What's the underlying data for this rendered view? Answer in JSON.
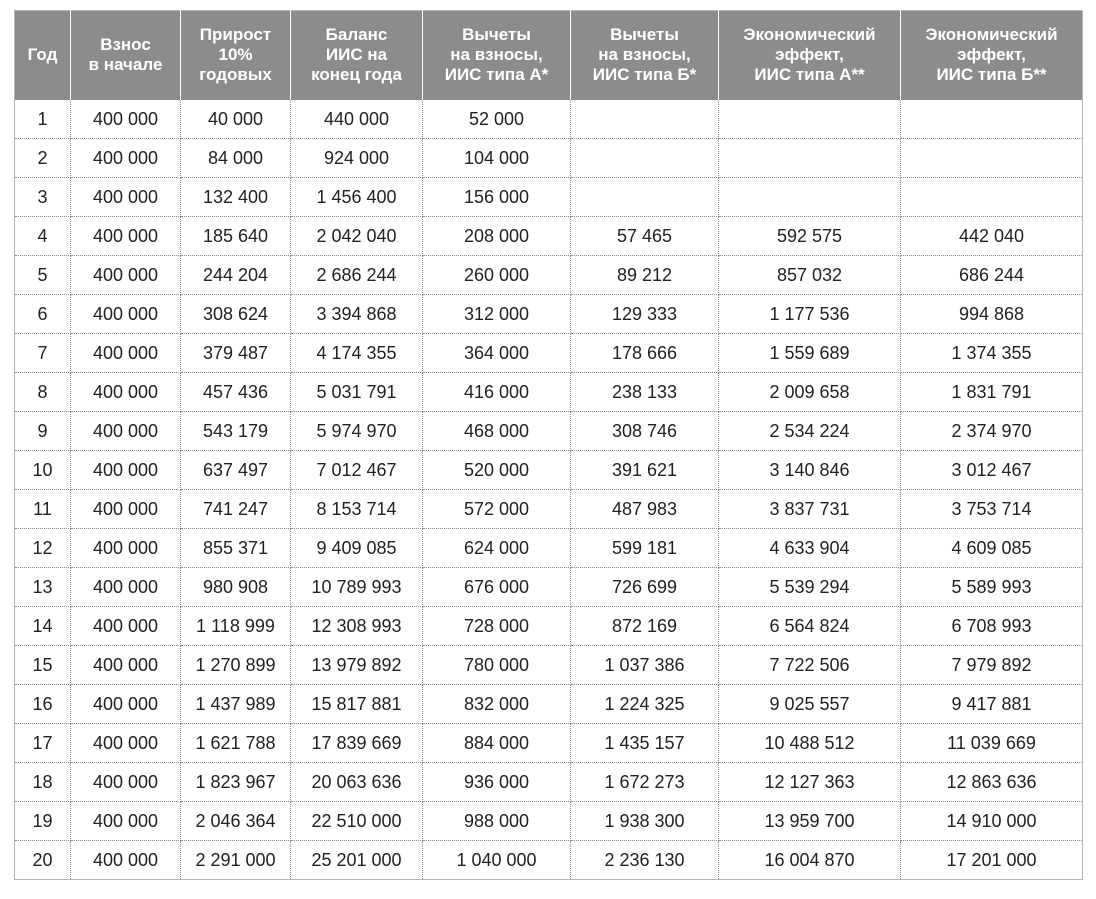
{
  "table": {
    "header": [
      "Год",
      "Взнос\nв начале",
      "Прирост\n10%\nгодовых",
      "Баланс\nИИС на\nконец года",
      "Вычеты\nна взносы,\nИИС типа А*",
      "Вычеты\nна взносы,\nИИС типа Б*",
      "Экономический\nэффект,\nИИС типа А**",
      "Экономический\nэффект,\nИИС типа Б**"
    ],
    "rows": [
      [
        "1",
        "400 000",
        "40 000",
        "440 000",
        "52 000",
        null,
        null,
        null
      ],
      [
        "2",
        "400 000",
        "84 000",
        "924 000",
        "104 000",
        null,
        null,
        null
      ],
      [
        "3",
        "400 000",
        "132 400",
        "1 456 400",
        "156 000",
        null,
        null,
        null
      ],
      [
        "4",
        "400 000",
        "185 640",
        "2 042 040",
        "208 000",
        "57 465",
        "592 575",
        "442 040"
      ],
      [
        "5",
        "400 000",
        "244 204",
        "2 686 244",
        "260 000",
        "89 212",
        "857 032",
        "686 244"
      ],
      [
        "6",
        "400 000",
        "308 624",
        "3 394 868",
        "312 000",
        "129 333",
        "1 177 536",
        "994 868"
      ],
      [
        "7",
        "400 000",
        "379 487",
        "4 174 355",
        "364 000",
        "178 666",
        "1 559 689",
        "1 374 355"
      ],
      [
        "8",
        "400 000",
        "457 436",
        "5 031 791",
        "416 000",
        "238 133",
        "2 009 658",
        "1 831 791"
      ],
      [
        "9",
        "400 000",
        "543 179",
        "5 974 970",
        "468 000",
        "308 746",
        "2 534 224",
        "2 374 970"
      ],
      [
        "10",
        "400 000",
        "637 497",
        "7 012 467",
        "520 000",
        "391 621",
        "3 140 846",
        "3 012 467"
      ],
      [
        "11",
        "400 000",
        "741 247",
        "8 153 714",
        "572 000",
        "487 983",
        "3 837 731",
        "3 753 714"
      ],
      [
        "12",
        "400 000",
        "855 371",
        "9 409 085",
        "624 000",
        "599 181",
        "4 633 904",
        "4 609 085"
      ],
      [
        "13",
        "400 000",
        "980 908",
        "10 789 993",
        "676 000",
        "726 699",
        "5 539 294",
        "5 589 993"
      ],
      [
        "14",
        "400 000",
        "1 118 999",
        "12 308 993",
        "728 000",
        "872 169",
        "6 564 824",
        "6 708 993"
      ],
      [
        "15",
        "400 000",
        "1 270 899",
        "13 979 892",
        "780 000",
        "1 037 386",
        "7 722 506",
        "7 979 892"
      ],
      [
        "16",
        "400 000",
        "1 437 989",
        "15 817 881",
        "832 000",
        "1 224 325",
        "9 025 557",
        "9 417 881"
      ],
      [
        "17",
        "400 000",
        "1 621 788",
        "17 839 669",
        "884 000",
        "1 435 157",
        "10 488 512",
        "11 039 669"
      ],
      [
        "18",
        "400 000",
        "1 823 967",
        "20 063 636",
        "936 000",
        "1 672 273",
        "12 127 363",
        "12 863 636"
      ],
      [
        "19",
        "400 000",
        "2 046 364",
        "22 510 000",
        "988 000",
        "1 938 300",
        "13 959 700",
        "14 910 000"
      ],
      [
        "20",
        "400 000",
        "2 291 000",
        "25 201 000",
        "1 040 000",
        "2 236 130",
        "16 004 870",
        "17 201 000"
      ]
    ]
  }
}
